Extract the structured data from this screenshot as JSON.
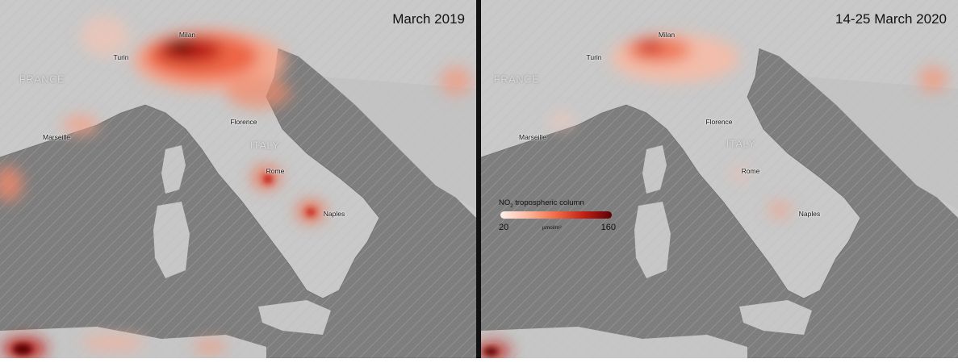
{
  "panels": [
    {
      "title": "March 2019",
      "cities": [
        "Milan",
        "Turin",
        "Florence",
        "Marseille",
        "Rome",
        "Naples"
      ],
      "countries": [
        "FRANCE",
        "ITALY"
      ]
    },
    {
      "title": "14-25 March 2020",
      "cities": [
        "Milan",
        "Turin",
        "Florence",
        "Marseille",
        "Rome",
        "Naples"
      ],
      "countries": [
        "FRANCE",
        "ITALY"
      ]
    }
  ],
  "legend": {
    "title_main": "NO",
    "title_sub": "2",
    "title_rest": " tropospheric column",
    "min": "20",
    "max": "160",
    "unit": "µmol/m²"
  },
  "colors": {
    "sea": "#7e7e7e",
    "land": "#c9c9c9",
    "divider": "#111111",
    "scale_low": "#fff1ec",
    "scale_high": "#5c0005"
  }
}
